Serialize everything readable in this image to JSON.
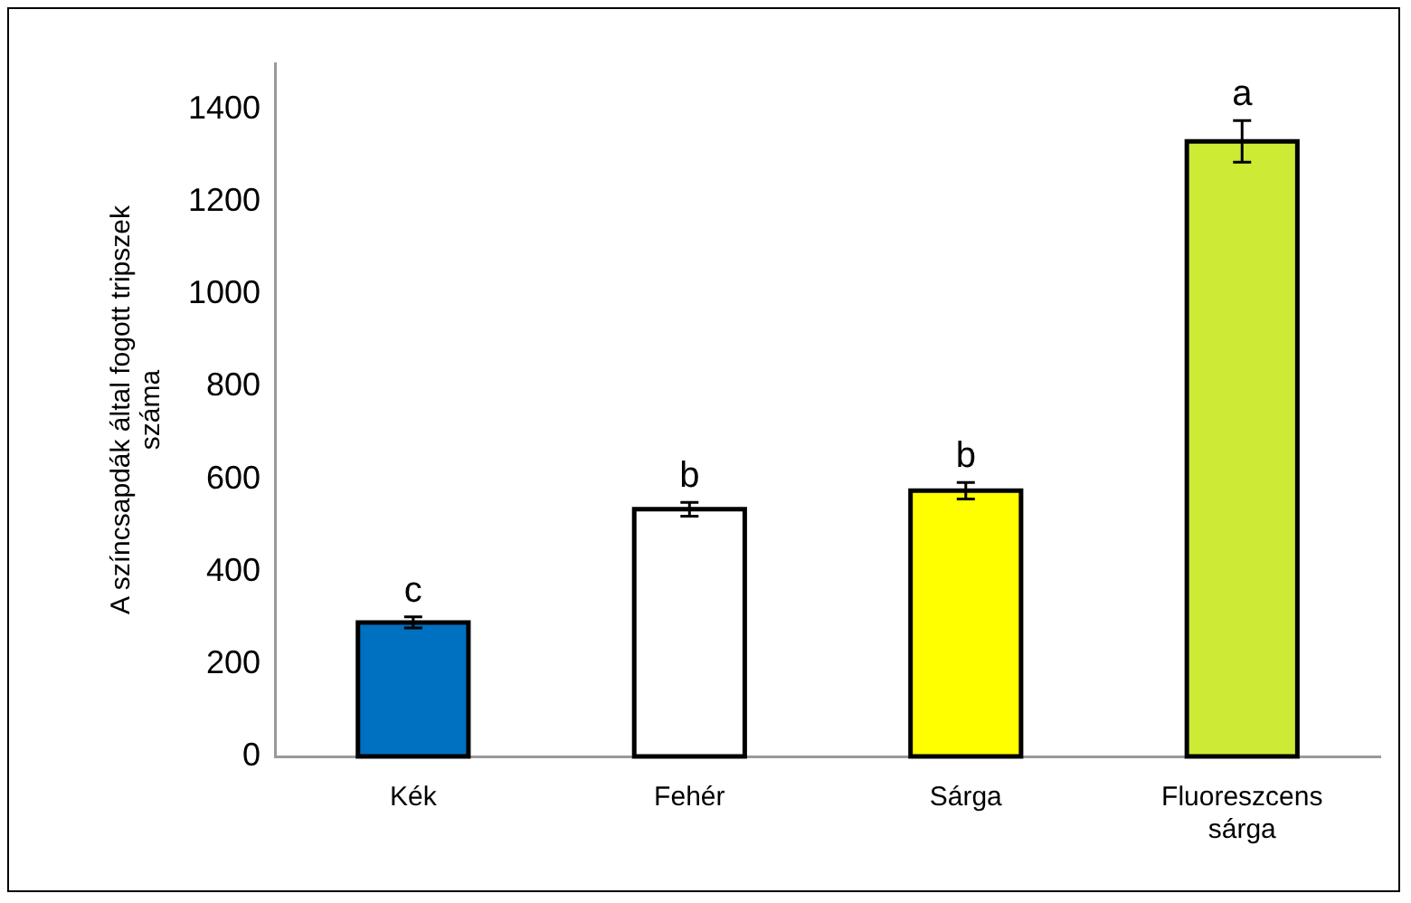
{
  "chart_data": {
    "type": "bar",
    "ylabel": "A színcsapdák által fogott tripszek száma",
    "categories": [
      "Kék",
      "Fehér",
      "Sárga",
      "Fluoreszcens sárga"
    ],
    "values": [
      290,
      535,
      575,
      1331
    ],
    "colors": [
      "#0070c0",
      "#ffffff",
      "#ffff00",
      "#cdeb34"
    ],
    "errors": [
      12,
      15,
      18,
      45
    ],
    "ylim": [
      0,
      1500
    ],
    "yticks": [
      0,
      200,
      400,
      600,
      800,
      1000,
      1200,
      1400
    ],
    "grid": false,
    "legend": false,
    "annotations": [
      {
        "text": "c",
        "x": "Kék",
        "y": 302
      },
      {
        "text": "b",
        "x": "Fehér",
        "y": 550
      },
      {
        "text": "b",
        "x": "Sárga",
        "y": 593
      },
      {
        "text": "a",
        "x": "Fluoreszcens sárga",
        "y": 1376
      }
    ]
  }
}
